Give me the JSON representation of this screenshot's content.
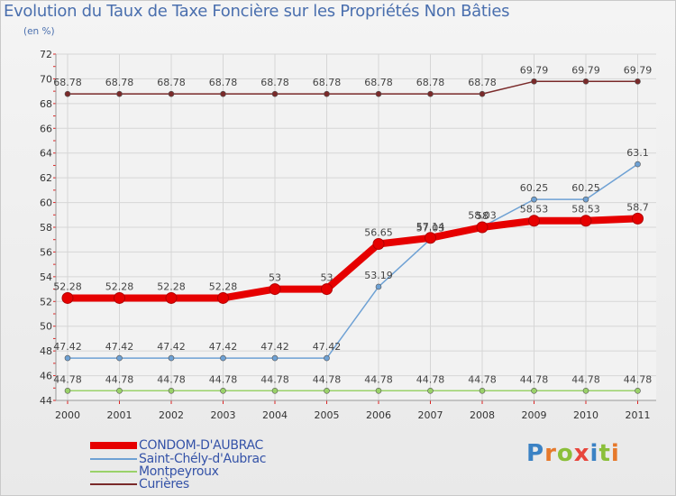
{
  "header": {
    "title": "Evolution du Taux de Taxe Foncière sur les Propriétés Non Bâties",
    "unit": "(en %)"
  },
  "logo": {
    "text": "Proxiti",
    "colors": [
      "#3b82c4",
      "#e6792b",
      "#8bbf3a",
      "#e8463c",
      "#3b82c4",
      "#8bbf3a",
      "#e6792b"
    ]
  },
  "chart_data": {
    "type": "line",
    "title": "Evolution du Taux de Taxe Foncière sur les Propriétés Non Bâties",
    "ylabel": "(en %)",
    "xlabel": "",
    "ylim": [
      44,
      72
    ],
    "yticks": [
      44,
      46,
      48,
      50,
      52,
      54,
      56,
      58,
      60,
      62,
      64,
      66,
      68,
      70,
      72
    ],
    "categories": [
      "2000",
      "2001",
      "2002",
      "2003",
      "2004",
      "2005",
      "2006",
      "2007",
      "2008",
      "2009",
      "2010",
      "2011"
    ],
    "grid": true,
    "legend_position": "bottom-left",
    "series": [
      {
        "name": "CONDOM-D'AUBRAC",
        "color": "#e60000",
        "weight": "thick",
        "values": [
          52.28,
          52.28,
          52.28,
          52.28,
          53,
          53,
          56.65,
          57.14,
          58,
          58.53,
          58.53,
          58.7
        ],
        "labels": [
          "52.28",
          "52.28",
          "52.28",
          "52.28",
          "53",
          "53",
          "56.65",
          "57.14",
          "58",
          "58.53",
          "58.53",
          "58.7"
        ]
      },
      {
        "name": "Saint-Chély-d'Aubrac",
        "color": "#6ea1d4",
        "weight": "thin",
        "values": [
          47.42,
          47.42,
          47.42,
          47.42,
          47.42,
          47.42,
          53.19,
          57.03,
          58.03,
          60.25,
          60.25,
          63.1
        ],
        "labels": [
          "47.42",
          "47.42",
          "47.42",
          "47.42",
          "47.42",
          "47.42",
          "53.19",
          "57.03",
          "58.03",
          "60.25",
          "60.25",
          "63.1"
        ]
      },
      {
        "name": "Montpeyroux",
        "color": "#9ad26a",
        "weight": "thin",
        "values": [
          44.78,
          44.78,
          44.78,
          44.78,
          44.78,
          44.78,
          44.78,
          44.78,
          44.78,
          44.78,
          44.78,
          44.78
        ],
        "labels": [
          "44.78",
          "44.78",
          "44.78",
          "44.78",
          "44.78",
          "44.78",
          "44.78",
          "44.78",
          "44.78",
          "44.78",
          "44.78",
          "44.78"
        ]
      },
      {
        "name": "Curières",
        "color": "#7a2a2a",
        "weight": "thin",
        "values": [
          68.78,
          68.78,
          68.78,
          68.78,
          68.78,
          68.78,
          68.78,
          68.78,
          68.78,
          69.79,
          69.79,
          69.79
        ],
        "labels": [
          "68.78",
          "68.78",
          "68.78",
          "68.78",
          "68.78",
          "68.78",
          "68.78",
          "68.78",
          "68.78",
          "69.79",
          "69.79",
          "69.79"
        ]
      }
    ]
  }
}
